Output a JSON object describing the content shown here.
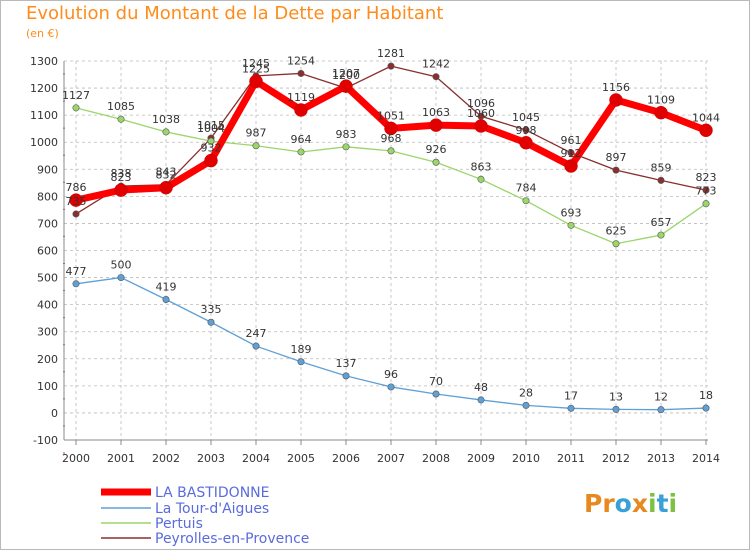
{
  "header": {
    "title": "Evolution du Montant de la Dette par Habitant",
    "subtitle": "(en €)"
  },
  "brand": {
    "logo_text": "Proxiti",
    "letters": [
      {
        "ch": "P",
        "color": "#e8891f"
      },
      {
        "ch": "r",
        "color": "#e8891f"
      },
      {
        "ch": "o",
        "color": "#3aa0d8"
      },
      {
        "ch": "x",
        "color": "#e8891f"
      },
      {
        "ch": "i",
        "color": "#7cc242"
      },
      {
        "ch": "t",
        "color": "#3aa0d8"
      },
      {
        "ch": "i",
        "color": "#7cc242"
      }
    ]
  },
  "colors": {
    "title": "#ff8c1a",
    "axis_text": "#333333",
    "grid": "#bbbbbb",
    "legend_text": "#5a6bdc"
  },
  "chart_data": {
    "type": "line",
    "title": "Evolution du Montant de la Dette par Habitant",
    "subtitle": "(en €)",
    "xlabel": "",
    "ylabel": "",
    "x": [
      2000,
      2001,
      2002,
      2003,
      2004,
      2005,
      2006,
      2007,
      2008,
      2009,
      2010,
      2011,
      2012,
      2013,
      2014
    ],
    "ylim": [
      -100,
      1300
    ],
    "yticks": [
      -100,
      0,
      100,
      200,
      300,
      400,
      500,
      600,
      700,
      800,
      900,
      1000,
      1100,
      1200,
      1300
    ],
    "grid": true,
    "legend_position": "bottom-left",
    "series": [
      {
        "name": "LA BASTIDONNE",
        "color": "#ff0000",
        "line_width": 7,
        "values": [
          786,
          823,
          832,
          932,
          1225,
          1119,
          1207,
          1051,
          1063,
          1060,
          998,
          912,
          1156,
          1109,
          1044
        ]
      },
      {
        "name": "La Tour-d'Aigues",
        "color": "#5fa0d6",
        "line_width": 1.3,
        "values": [
          477,
          500,
          419,
          335,
          247,
          189,
          137,
          96,
          70,
          48,
          28,
          17,
          13,
          12,
          18
        ]
      },
      {
        "name": "Pertuis",
        "color": "#9ad66a",
        "line_width": 1.3,
        "values": [
          1127,
          1085,
          1038,
          1004,
          987,
          964,
          983,
          968,
          926,
          863,
          784,
          693,
          625,
          657,
          773
        ]
      },
      {
        "name": "Peyrolles-en-Provence",
        "color": "#8a2f2f",
        "line_width": 1.3,
        "values": [
          735,
          838,
          843,
          1015,
          1245,
          1254,
          1200,
          1281,
          1242,
          1096,
          1045,
          961,
          897,
          859,
          823
        ]
      }
    ]
  }
}
